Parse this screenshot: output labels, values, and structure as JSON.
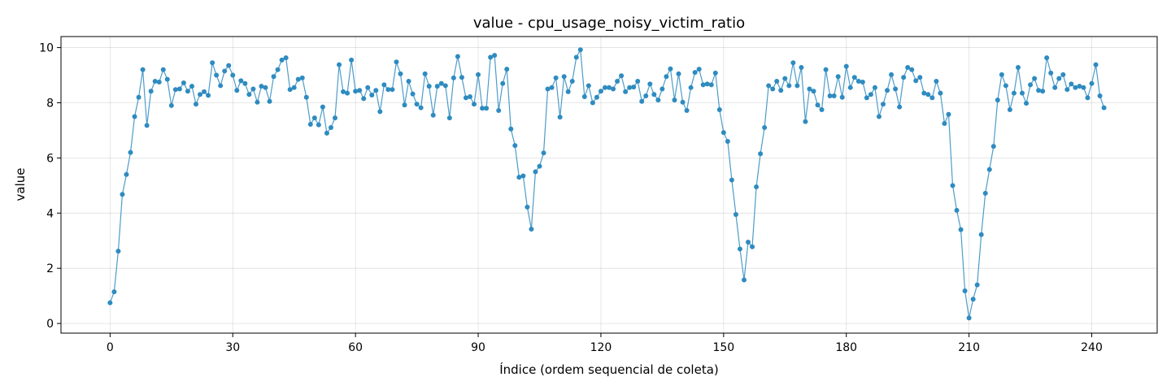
{
  "chart_data": {
    "type": "line",
    "title": "value - cpu_usage_noisy_victim_ratio",
    "xlabel": "Índice (ordem sequencial de coleta)",
    "ylabel": "value",
    "xlim": [
      -12,
      256
    ],
    "ylim": [
      -0.35,
      10.4
    ],
    "xticks": [
      0,
      30,
      60,
      90,
      120,
      150,
      180,
      210,
      240
    ],
    "yticks": [
      0,
      2,
      4,
      6,
      8,
      10
    ],
    "grid": true,
    "color": "#2e8bc0",
    "series": [
      {
        "name": "",
        "y": [
          0.75,
          1.15,
          2.62,
          4.68,
          5.4,
          6.2,
          7.5,
          8.2,
          9.2,
          7.18,
          8.42,
          8.78,
          8.75,
          9.2,
          8.85,
          7.9,
          8.48,
          8.5,
          8.72,
          8.42,
          8.6,
          7.95,
          8.3,
          8.4,
          8.27,
          9.45,
          9.0,
          8.62,
          9.15,
          9.35,
          9.0,
          8.45,
          8.8,
          8.7,
          8.3,
          8.5,
          8.02,
          8.6,
          8.55,
          8.05,
          8.95,
          9.2,
          9.55,
          9.63,
          8.48,
          8.55,
          8.85,
          8.9,
          8.2,
          7.22,
          7.45,
          7.2,
          7.85,
          6.9,
          7.1,
          7.45,
          9.38,
          8.4,
          8.35,
          9.55,
          8.42,
          8.45,
          8.15,
          8.55,
          8.28,
          8.45,
          7.68,
          8.65,
          8.48,
          8.48,
          9.48,
          9.05,
          7.92,
          8.78,
          8.32,
          7.95,
          7.82,
          9.05,
          8.6,
          7.55,
          8.6,
          8.7,
          8.62,
          7.45,
          8.9,
          9.68,
          8.92,
          8.18,
          8.22,
          7.95,
          9.02,
          7.8,
          7.8,
          9.65,
          9.72,
          7.72,
          8.7,
          9.22,
          7.05,
          6.45,
          5.3,
          5.35,
          4.22,
          3.42,
          5.5,
          5.7,
          6.18,
          8.5,
          8.55,
          8.9,
          7.48,
          8.95,
          8.4,
          8.78,
          9.65,
          9.92,
          8.22,
          8.62,
          8.0,
          8.2,
          8.42,
          8.55,
          8.55,
          8.5,
          8.78,
          8.98,
          8.4,
          8.55,
          8.57,
          8.78,
          8.05,
          8.25,
          8.68,
          8.3,
          8.1,
          8.5,
          8.95,
          9.23,
          8.1,
          9.05,
          8.02,
          7.72,
          8.55,
          9.1,
          9.22,
          8.65,
          8.68,
          8.65,
          9.08,
          7.75,
          6.92,
          6.6,
          5.2,
          3.95,
          2.7,
          1.58,
          2.95,
          2.78,
          4.95,
          6.15,
          7.1,
          8.62,
          8.5,
          8.78,
          8.45,
          8.88,
          8.62,
          9.45,
          8.62,
          9.28,
          7.32,
          8.5,
          8.42,
          7.92,
          7.75,
          9.2,
          8.25,
          8.25,
          8.95,
          8.2,
          9.32,
          8.55,
          8.92,
          8.78,
          8.75,
          8.18,
          8.3,
          8.55,
          7.5,
          7.95,
          8.45,
          9.02,
          8.5,
          7.85,
          8.92,
          9.28,
          9.2,
          8.8,
          8.92,
          8.35,
          8.3,
          8.18,
          8.78,
          8.35,
          7.25,
          7.58,
          5.0,
          4.1,
          3.4,
          1.18,
          0.2,
          0.88,
          1.4,
          3.22,
          4.72,
          5.58,
          6.42,
          8.1,
          9.02,
          8.62,
          7.75,
          8.35,
          9.28,
          8.35,
          7.98,
          8.65,
          8.88,
          8.45,
          8.42,
          9.63,
          9.08,
          8.55,
          8.88,
          9.02,
          8.48,
          8.68,
          8.55,
          8.6,
          8.55,
          8.18,
          8.7,
          9.38,
          8.25,
          7.82
        ]
      }
    ]
  }
}
